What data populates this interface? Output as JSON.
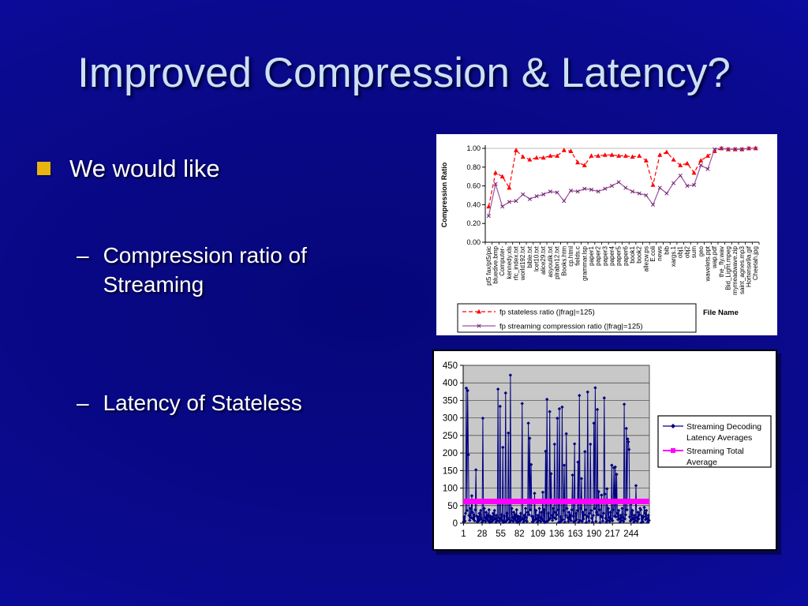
{
  "slide": {
    "title": "Improved Compression & Latency?",
    "dash": "–",
    "bullets": [
      {
        "level": 1,
        "text": "We would like"
      },
      {
        "level": 2,
        "text": "Compression ratio of Streaming"
      },
      {
        "level": 2,
        "text": "Latency of Stateless"
      }
    ],
    "colors": {
      "background_center": "#06067A",
      "background_edge": "#1414C8",
      "title_text": "#CCE0F5",
      "body_text": "#FFFFFF",
      "bullet_square": "#E9B410"
    }
  },
  "chart_data": [
    {
      "type": "line",
      "title": "",
      "ylabel": "Compression Ratio",
      "xlabel": "File Name",
      "ylim": [
        0,
        1.0
      ],
      "yticks": [
        0,
        0.2,
        0.4,
        0.6,
        0.8,
        1.0
      ],
      "ytick_labels": [
        "0.00",
        "0.20",
        "0.40",
        "0.60",
        "0.80",
        "1.00"
      ],
      "grid": "top-line-only",
      "legend_position": "bottom-left-box",
      "categories": [
        "pt5 fax/pt5/pic",
        "bluedive.bmp",
        "Computer-",
        "kennedy.xls",
        "rfc_index.txt",
        "world192.txt",
        "bible.txt",
        "lcet10.txt",
        "alice29.txt",
        "asyoulik.txt",
        "plrabn12.txt",
        "Books.htm",
        "cp.html",
        "fields.c",
        "grammar.lsp",
        "paper1",
        "paper2",
        "paper3",
        "paper4",
        "paper5",
        "paper6",
        "book1",
        "book2",
        "allezw.ps",
        "E.coli",
        "news",
        "bib",
        "xargs.1",
        "obj1",
        "obj2",
        "sum",
        "geo",
        "wavelets.ppt",
        "wap.pdf",
        "the_fly.wav",
        "Bid_Light.mpeg",
        "mymeadwave.zip",
        "saint_agnes.mp3",
        "Hortense9a.gif",
        "Cheetah.jpg"
      ],
      "series": [
        {
          "name": "fp stateless ratio (|frag|=125)",
          "color": "#FF0000",
          "line_style": "dashed",
          "marker": "triangle",
          "values": [
            0.38,
            0.74,
            0.7,
            0.58,
            0.98,
            0.91,
            0.88,
            0.9,
            0.9,
            0.92,
            0.92,
            0.98,
            0.97,
            0.85,
            0.82,
            0.92,
            0.92,
            0.93,
            0.93,
            0.92,
            0.92,
            0.91,
            0.92,
            0.87,
            0.61,
            0.93,
            0.96,
            0.88,
            0.82,
            0.84,
            0.74,
            0.87,
            0.92,
            0.97,
            1.0,
            0.99,
            0.99,
            0.99,
            1.0,
            1.0
          ]
        },
        {
          "name": "fp streaming compression ratio (|frag|=125)",
          "color": "#A050A0",
          "marker_color": "#702070",
          "line_style": "solid",
          "marker": "x",
          "values": [
            0.28,
            0.62,
            0.38,
            0.43,
            0.44,
            0.51,
            0.46,
            0.49,
            0.51,
            0.54,
            0.53,
            0.44,
            0.55,
            0.54,
            0.57,
            0.56,
            0.54,
            0.57,
            0.6,
            0.64,
            0.58,
            0.54,
            0.52,
            0.5,
            0.4,
            0.58,
            0.52,
            0.63,
            0.71,
            0.6,
            0.61,
            0.82,
            0.78,
            0.99,
            1.0,
            0.99,
            0.99,
            0.99,
            1.0,
            1.0
          ]
        }
      ]
    },
    {
      "type": "scatter-stem",
      "title": "",
      "ylim": [
        0,
        450
      ],
      "yticks": [
        0,
        50,
        100,
        150,
        200,
        250,
        300,
        350,
        400,
        450
      ],
      "ytick_labels": [
        "0",
        "50",
        "100",
        "150",
        "200",
        "250",
        "300",
        "350",
        "400",
        "450"
      ],
      "plot_background": "#C8C8C8",
      "grid": "horizontal",
      "legend_position": "right-box",
      "point_count": 270,
      "xtick_indices": [
        0,
        27,
        54,
        81,
        108,
        135,
        162,
        189,
        216,
        243
      ],
      "xtick_labels": [
        "1",
        "28",
        "55",
        "82",
        "109",
        "136",
        "163",
        "190",
        "217",
        "244"
      ],
      "series": [
        {
          "name": "Streaming Decoding Latency Averages",
          "name_lines": [
            "Streaming Decoding",
            "Latency Averages"
          ],
          "color": "#000080",
          "marker": "diamond",
          "values_encoding": {
            "count": 270,
            "base_cycle": [
              4,
              18,
              6,
              28,
              10,
              36,
              14,
              3,
              22,
              8,
              42,
              16,
              5,
              31,
              12,
              24,
              7,
              38,
              2,
              20
            ],
            "spikes": {
              "4": 385,
              "6": 378,
              "7": 195,
              "12": 78,
              "18": 152,
              "28": 299,
              "50": 382,
              "53": 333,
              "57": 216,
              "61": 371,
              "65": 257,
              "68": 422,
              "85": 341,
              "94": 285,
              "96": 242,
              "98": 167,
              "103": 85,
              "115": 88,
              "119": 205,
              "121": 353,
              "125": 318,
              "127": 141,
              "132": 225,
              "136": 299,
              "139": 326,
              "143": 331,
              "146": 165,
              "149": 255,
              "158": 137,
              "161": 226,
              "166": 174,
              "168": 364,
              "171": 127,
              "176": 204,
              "180": 374,
              "184": 225,
              "189": 285,
              "191": 386,
              "194": 324,
              "196": 90,
              "200": 80,
              "204": 357,
              "205": 83,
              "208": 98,
              "215": 165,
              "218": 158,
              "220": 160,
              "222": 139,
              "233": 339,
              "236": 270,
              "238": 240,
              "239": 232,
              "240": 210,
              "243": 55,
              "250": 107,
              "256": 42,
              "262": 45
            }
          }
        },
        {
          "name": "Streaming Total Average",
          "name_lines": [
            "Streaming Total",
            "Average"
          ],
          "color": "#FF00FF",
          "marker": "square",
          "type": "hline",
          "value": 62
        }
      ]
    }
  ]
}
